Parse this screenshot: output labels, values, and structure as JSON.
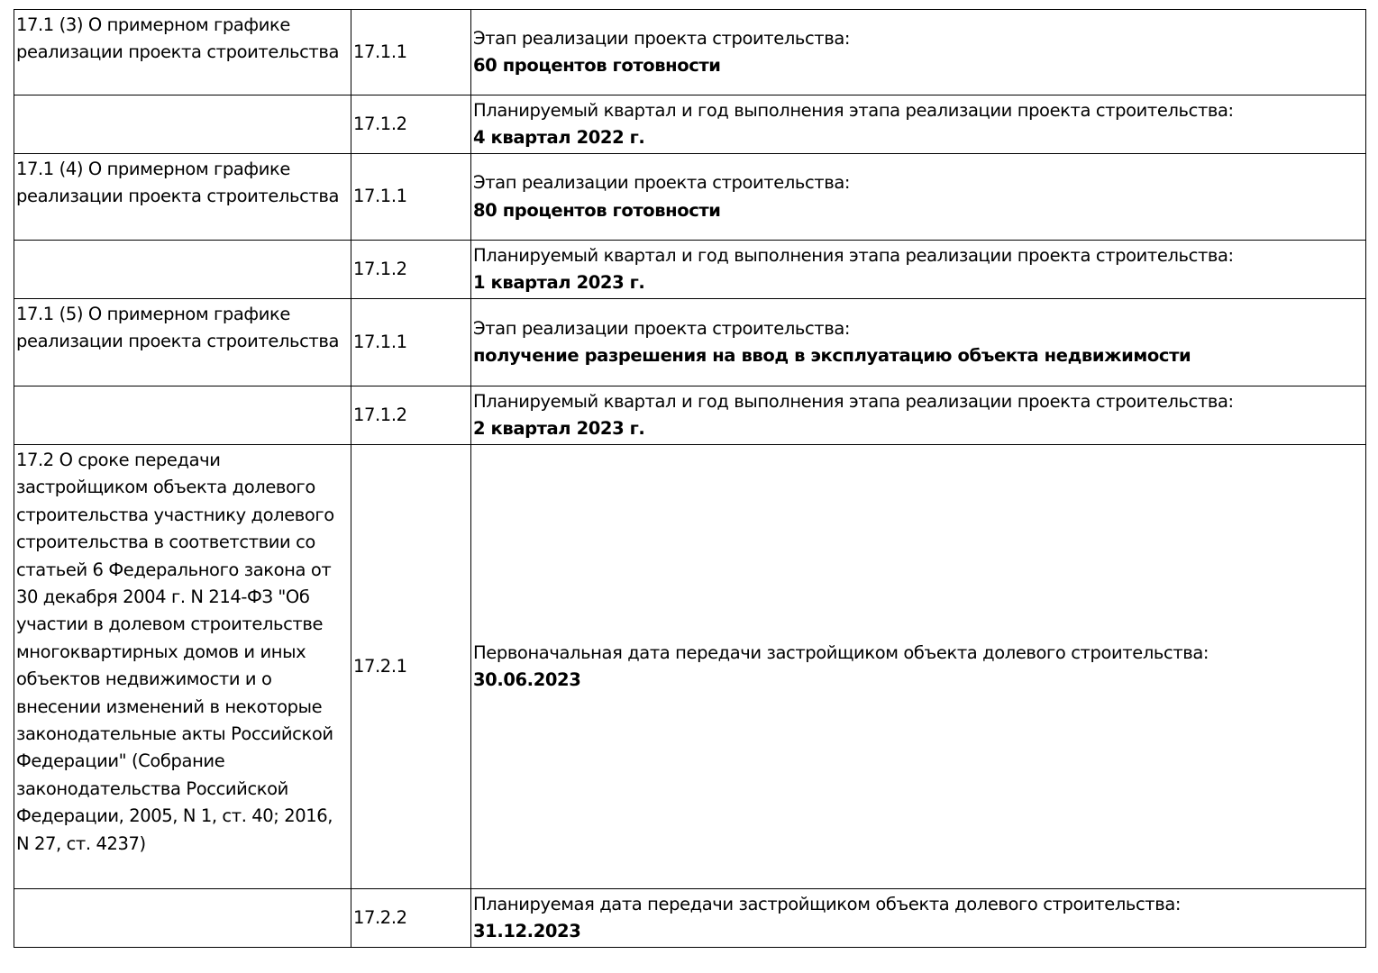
{
  "rows": [
    {
      "section": "17.1 (3) О примерном графике реализации проекта строительства",
      "code": "17.1.1",
      "label": "Этап реализации проекта строительства:",
      "value": "60 процентов готовности"
    },
    {
      "section": "",
      "code": "17.1.2",
      "label": "Планируемый квартал и год выполнения этапа реализации проекта строительства:",
      "value": "4 квартал 2022 г."
    },
    {
      "section": "17.1 (4) О примерном графике реализации проекта строительства",
      "code": "17.1.1",
      "label": "Этап реализации проекта строительства:",
      "value": "80 процентов готовности"
    },
    {
      "section": "",
      "code": "17.1.2",
      "label": "Планируемый квартал и год выполнения этапа реализации проекта строительства:",
      "value": "1 квартал 2023 г."
    },
    {
      "section": "17.1 (5) О примерном графике реализации проекта строительства",
      "code": "17.1.1",
      "label": "Этап реализации проекта строительства:",
      "value": "получение разрешения на ввод в эксплуатацию объекта недвижимости"
    },
    {
      "section": "",
      "code": "17.1.2",
      "label": "Планируемый квартал и год выполнения этапа реализации проекта строительства:",
      "value": "2 квартал 2023 г."
    },
    {
      "section": "17.2 О сроке передачи застройщиком объекта долевого строительства участнику долевого строительства в соответствии со статьей 6 Федерального закона от 30 декабря 2004 г. N 214-ФЗ \"Об участии в долевом строительстве многоквартирных домов и иных объектов недвижимости и о внесении изменений в некоторые законодательные акты Российской Федерации\" (Собрание законодательства Российской Федерации, 2005, N 1, ст. 40; 2016, N 27, ст. 4237)",
      "code": "17.2.1",
      "label": "Первоначальная дата передачи застройщиком объекта долевого строительства:",
      "value": "30.06.2023"
    },
    {
      "section": "",
      "code": "17.2.2",
      "label": "Планируемая дата передачи застройщиком объекта долевого строительства:",
      "value": "31.12.2023"
    }
  ]
}
